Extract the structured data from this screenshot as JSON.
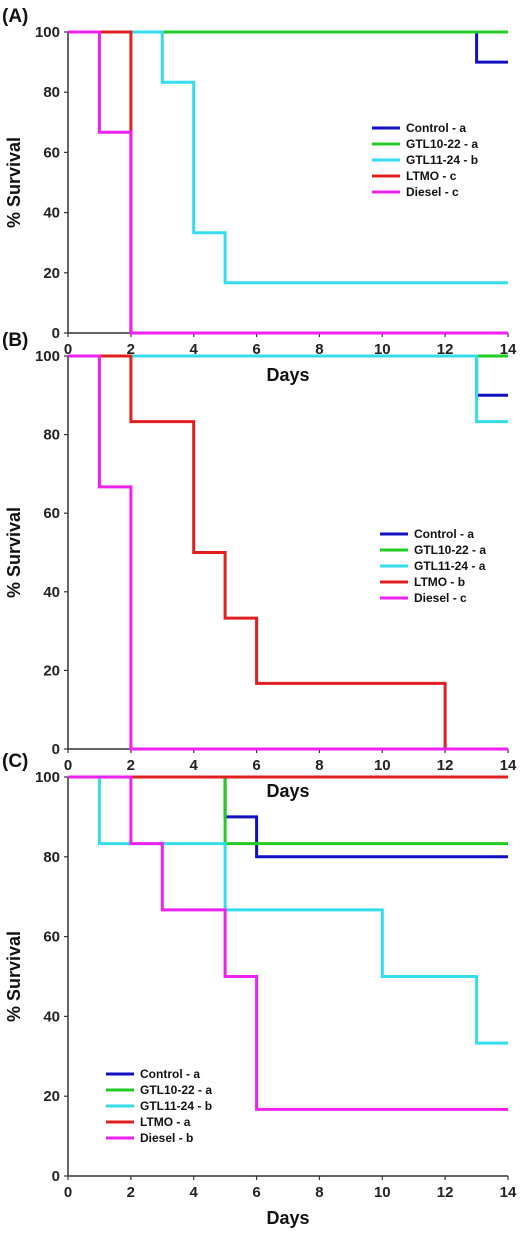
{
  "chart_data": [
    {
      "type": "line",
      "panel_label": "(A)",
      "xlabel": "Days",
      "ylabel": "% Survival",
      "xlim": [
        0,
        14
      ],
      "ylim": [
        0,
        100
      ],
      "xticks": [
        0,
        2,
        4,
        6,
        8,
        10,
        12,
        14
      ],
      "yticks": [
        0,
        20,
        40,
        60,
        80,
        100
      ],
      "step": true,
      "legend_position": "right",
      "series": [
        {
          "name": "Control - a",
          "color": "#1010c0",
          "x": [
            0,
            13,
            13,
            14
          ],
          "y": [
            100,
            100,
            90,
            90
          ]
        },
        {
          "name": "GTL10-22 - a",
          "color": "#22cc22",
          "x": [
            0,
            14
          ],
          "y": [
            100,
            100
          ]
        },
        {
          "name": "GTL11-24 - b",
          "color": "#33ddee",
          "x": [
            0,
            3,
            3,
            4,
            4,
            5,
            5,
            14
          ],
          "y": [
            100,
            100,
            83.3,
            83.3,
            33.3,
            33.3,
            16.7,
            16.7
          ]
        },
        {
          "name": "LTMO - c",
          "color": "#e02020",
          "x": [
            0,
            2,
            2,
            14
          ],
          "y": [
            100,
            100,
            0,
            0
          ]
        },
        {
          "name": "Diesel - c",
          "color": "#ee22ee",
          "x": [
            0,
            1,
            1,
            2,
            2,
            14
          ],
          "y": [
            100,
            100,
            66.7,
            66.7,
            0,
            0
          ]
        }
      ]
    },
    {
      "type": "line",
      "panel_label": "(B)",
      "xlabel": "Days",
      "ylabel": "% Survival",
      "xlim": [
        0,
        14
      ],
      "ylim": [
        0,
        100
      ],
      "xticks": [
        0,
        2,
        4,
        6,
        8,
        10,
        12,
        14
      ],
      "yticks": [
        0,
        20,
        40,
        60,
        80,
        100
      ],
      "step": true,
      "legend_position": "right",
      "series": [
        {
          "name": "Control - a",
          "color": "#1010c0",
          "x": [
            0,
            13,
            13,
            14
          ],
          "y": [
            100,
            100,
            90,
            90
          ]
        },
        {
          "name": "GTL10-22 - a",
          "color": "#22cc22",
          "x": [
            0,
            14
          ],
          "y": [
            100,
            100
          ]
        },
        {
          "name": "GTL11-24 - a",
          "color": "#33ddee",
          "x": [
            0,
            13,
            13,
            14
          ],
          "y": [
            100,
            100,
            83.3,
            83.3
          ]
        },
        {
          "name": "LTMO - b",
          "color": "#e02020",
          "x": [
            0,
            2,
            2,
            4,
            4,
            5,
            5,
            6,
            6,
            12,
            12,
            14
          ],
          "y": [
            100,
            100,
            83.3,
            83.3,
            50,
            50,
            33.3,
            33.3,
            16.7,
            16.7,
            0,
            0
          ]
        },
        {
          "name": "Diesel - c",
          "color": "#ee22ee",
          "x": [
            0,
            1,
            1,
            2,
            2,
            14
          ],
          "y": [
            100,
            100,
            66.7,
            66.7,
            0,
            0
          ]
        }
      ]
    },
    {
      "type": "line",
      "panel_label": "(C)",
      "xlabel": "Days",
      "ylabel": "% Survival",
      "xlim": [
        0,
        14
      ],
      "ylim": [
        0,
        100
      ],
      "xticks": [
        0,
        2,
        4,
        6,
        8,
        10,
        12,
        14
      ],
      "yticks": [
        0,
        20,
        40,
        60,
        80,
        100
      ],
      "step": true,
      "legend_position": "lower-left",
      "series": [
        {
          "name": "Control - a",
          "color": "#1010c0",
          "x": [
            0,
            5,
            5,
            6,
            6,
            14
          ],
          "y": [
            100,
            100,
            90,
            90,
            80,
            80
          ]
        },
        {
          "name": "GTL10-22 - a",
          "color": "#22cc22",
          "x": [
            0,
            5,
            5,
            14
          ],
          "y": [
            100,
            100,
            83.3,
            83.3
          ]
        },
        {
          "name": "GTL11-24 - b",
          "color": "#33ddee",
          "x": [
            0,
            1,
            1,
            5,
            5,
            10,
            10,
            13,
            13,
            14
          ],
          "y": [
            100,
            100,
            83.3,
            83.3,
            66.7,
            66.7,
            50,
            50,
            33.3,
            33.3
          ]
        },
        {
          "name": "LTMO - a",
          "color": "#e02020",
          "x": [
            0,
            14
          ],
          "y": [
            100,
            100
          ]
        },
        {
          "name": "Diesel - b",
          "color": "#ee22ee",
          "x": [
            0,
            2,
            2,
            3,
            3,
            5,
            5,
            6,
            6,
            14
          ],
          "y": [
            100,
            100,
            83.3,
            83.3,
            66.7,
            66.7,
            50,
            50,
            16.7,
            16.7
          ]
        }
      ]
    }
  ]
}
